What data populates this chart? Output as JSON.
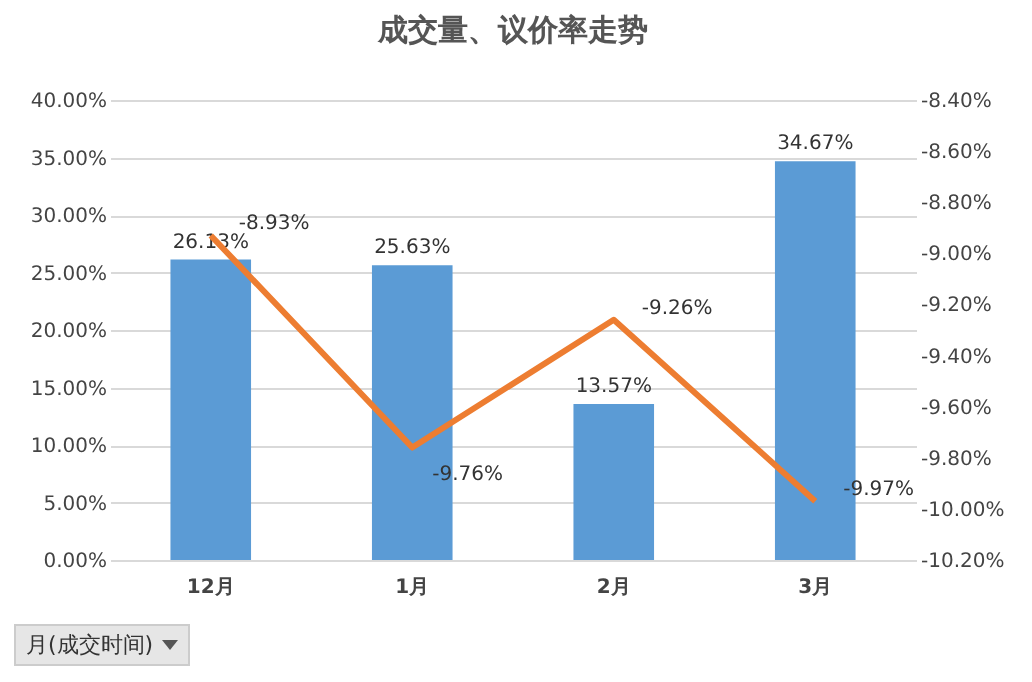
{
  "chart_data": {
    "type": "bar",
    "title": "成交量、议价率走势",
    "categories": [
      "12月",
      "1月",
      "2月",
      "3月"
    ],
    "series": [
      {
        "color": "#5b9bd5",
        "values": [
          26.13,
          25.63,
          13.57,
          34.67
        ],
        "value_labels": [
          "26.13%",
          "25.63%",
          "13.57%",
          "34.67%"
        ]
      },
      {
        "type": "line",
        "axis": "y2",
        "color": "#ed7d31",
        "values": [
          -8.93,
          -9.76,
          -9.26,
          -9.97
        ],
        "value_labels": [
          "-8.93%",
          "-9.76%",
          "-9.26%",
          "-9.97%"
        ],
        "marker": "none"
      }
    ],
    "ylim": [
      0,
      40
    ],
    "yticks": [
      {
        "value": 0,
        "label": "0.00%"
      },
      {
        "value": 5,
        "label": "5.00%"
      },
      {
        "value": 10,
        "label": "10.00%"
      },
      {
        "value": 15,
        "label": "15.00%"
      },
      {
        "value": 20,
        "label": "20.00%"
      },
      {
        "value": 25,
        "label": "25.00%"
      },
      {
        "value": 30,
        "label": "30.00%"
      },
      {
        "value": 35,
        "label": "35.00%"
      },
      {
        "value": 40,
        "label": "40.00%"
      }
    ],
    "y2lim": [
      -10.2,
      -8.4
    ],
    "y2ticks": [
      {
        "value": -10.2,
        "label": "-10.20%"
      },
      {
        "value": -10.0,
        "label": "-10.00%"
      },
      {
        "value": -9.8,
        "label": "-9.80%"
      },
      {
        "value": -9.6,
        "label": "-9.60%"
      },
      {
        "value": -9.4,
        "label": "-9.40%"
      },
      {
        "value": -9.2,
        "label": "-9.20%"
      },
      {
        "value": -9.0,
        "label": "-9.00%"
      },
      {
        "value": -8.8,
        "label": "-8.80%"
      },
      {
        "value": -8.6,
        "label": "-8.60%"
      },
      {
        "value": -8.4,
        "label": "-8.40%"
      }
    ],
    "grid": "y",
    "annotations": [
      "月(成交时间)"
    ]
  }
}
